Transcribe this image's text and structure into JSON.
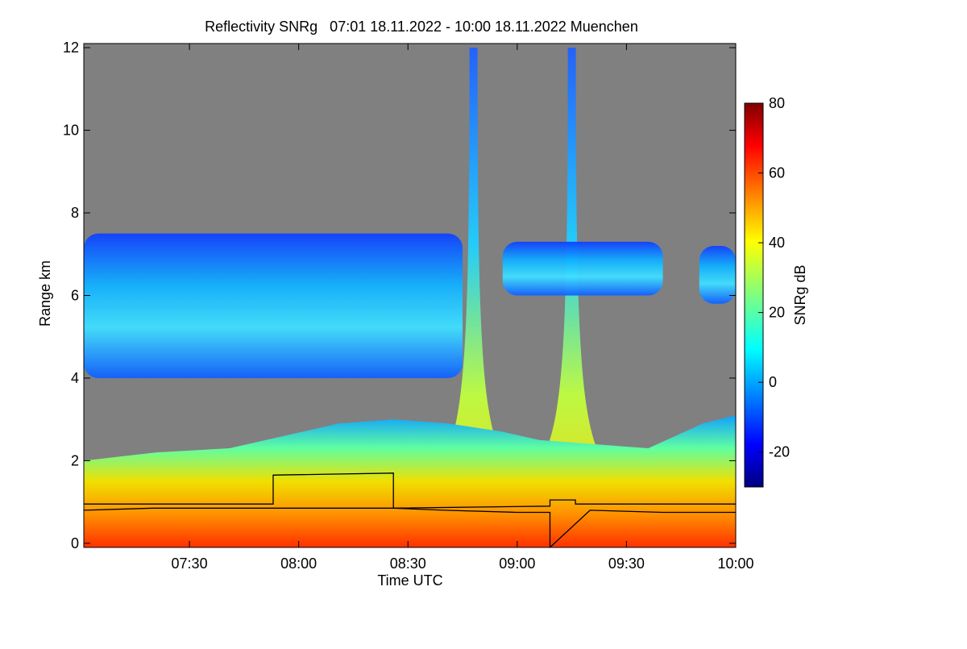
{
  "chart_data": {
    "type": "heatmap",
    "title": "Reflectivity SNRg   07:01 18.11.2022 - 10:00 18.11.2022 Muenchen",
    "xlabel": "Time UTC",
    "ylabel": "Range km",
    "colorbar_label": "SNRg dB",
    "x_start": "07:01",
    "x_end": "10:00",
    "date": "18.11.2022",
    "location": "Muenchen",
    "x_ticks": [
      "07:30",
      "08:00",
      "08:30",
      "09:00",
      "09:30",
      "10:00"
    ],
    "x_tick_minutes": [
      29,
      59,
      89,
      119,
      149,
      179
    ],
    "x_range_minutes": [
      0,
      179
    ],
    "ylim": [
      -0.1,
      12.1
    ],
    "y_ticks": [
      0,
      2,
      4,
      6,
      8,
      10,
      12
    ],
    "colorbar_range": [
      -30,
      80
    ],
    "colorbar_ticks": [
      -20,
      0,
      20,
      40,
      60,
      80
    ],
    "colormap": "jet",
    "no_data_color": "#808080",
    "features": [
      {
        "description": "mid-level cloud layer",
        "start": "07:01",
        "end": "08:45",
        "base_km_approx": 4.0,
        "top_km_approx": 7.5
      },
      {
        "description": "precipitation shaft",
        "time": "08:48",
        "top_km": 12
      },
      {
        "description": "precipitation shaft",
        "time": "09:15",
        "top_km": 12
      },
      {
        "description": "mid-level cloud patch",
        "start": "08:56",
        "end": "09:40",
        "base_km_approx": 6.0,
        "top_km_approx": 7.3
      },
      {
        "description": "mid-level cloud patch",
        "start": "09:50",
        "end": "10:00",
        "base_km_approx": 5.8,
        "top_km_approx": 7.2
      },
      {
        "description": "lower cloud / boundary layer",
        "start": "07:01",
        "end": "10:00",
        "top_km_approx": 3.0
      }
    ],
    "line_series": [
      {
        "color": "#000000",
        "x": [
          "07:01",
          "07:35",
          "07:35",
          "07:53",
          "07:53",
          "08:26",
          "08:26",
          "09:09",
          "09:09",
          "09:16",
          "09:16",
          "10:00"
        ],
        "y": [
          0.95,
          0.95,
          0.95,
          0.95,
          1.65,
          1.7,
          0.85,
          0.9,
          1.05,
          1.05,
          0.95,
          0.95
        ]
      },
      {
        "color": "#000000",
        "x": [
          "07:01",
          "07:20",
          "07:40",
          "08:00",
          "08:26",
          "08:40",
          "09:00",
          "09:09",
          "09:09",
          "09:20",
          "09:40",
          "10:00"
        ],
        "y": [
          0.8,
          0.85,
          0.85,
          0.85,
          0.85,
          0.8,
          0.75,
          0.75,
          -0.1,
          0.8,
          0.75,
          0.75
        ]
      }
    ]
  }
}
